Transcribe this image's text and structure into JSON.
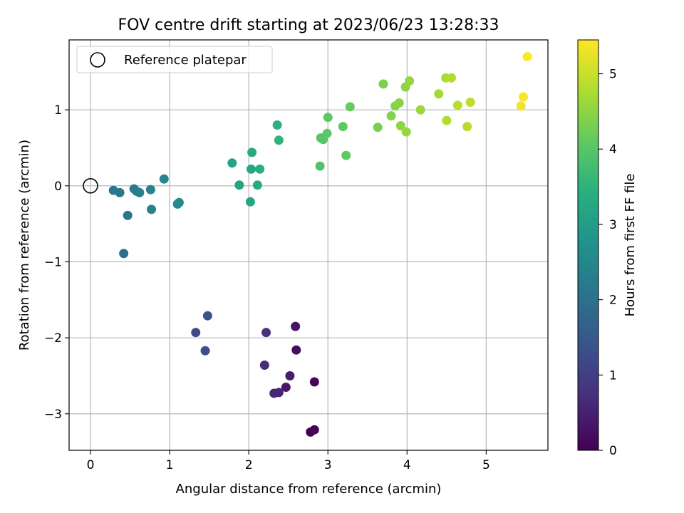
{
  "chart_data": {
    "type": "scatter",
    "title": "FOV centre drift starting at 2023/06/23 13:28:33",
    "xlabel": "Angular distance from reference (arcmin)",
    "ylabel": "Rotation from reference (arcmin)",
    "xlim": [
      -0.27,
      5.78
    ],
    "ylim": [
      -3.48,
      1.92
    ],
    "xticks": [
      0,
      1,
      2,
      3,
      4,
      5
    ],
    "yticks": [
      -3,
      -2,
      -1,
      0,
      1
    ],
    "xtick_labels": [
      "0",
      "1",
      "2",
      "3",
      "4",
      "5"
    ],
    "ytick_labels": [
      "−3",
      "−2",
      "−1",
      "0",
      "1"
    ],
    "grid": true,
    "legend": {
      "placement": "top-left",
      "entries": [
        {
          "label": "Reference platepar",
          "marker": "open-circle"
        }
      ]
    },
    "reference_point": {
      "x": 0,
      "y": 0
    },
    "colorbar": {
      "label": "Hours from first FF file",
      "colormap": "viridis",
      "range": [
        0,
        5.45
      ],
      "ticks": [
        0,
        1,
        2,
        3,
        4,
        5
      ],
      "tick_labels": [
        "0",
        "1",
        "2",
        "3",
        "4",
        "5"
      ]
    },
    "points": [
      {
        "x": 2.78,
        "y": -3.24,
        "c": 0.0
      },
      {
        "x": 2.83,
        "y": -3.21,
        "c": 0.05
      },
      {
        "x": 2.83,
        "y": -2.58,
        "c": 0.1
      },
      {
        "x": 2.6,
        "y": -2.16,
        "c": 0.2
      },
      {
        "x": 2.59,
        "y": -1.85,
        "c": 0.3
      },
      {
        "x": 2.47,
        "y": -2.65,
        "c": 0.4
      },
      {
        "x": 2.52,
        "y": -2.5,
        "c": 0.45
      },
      {
        "x": 2.38,
        "y": -2.72,
        "c": 0.55
      },
      {
        "x": 2.32,
        "y": -2.73,
        "c": 0.6
      },
      {
        "x": 2.2,
        "y": -2.36,
        "c": 0.7
      },
      {
        "x": 2.22,
        "y": -1.93,
        "c": 0.75
      },
      {
        "x": 1.33,
        "y": -1.93,
        "c": 1.2
      },
      {
        "x": 1.45,
        "y": -2.17,
        "c": 1.3
      },
      {
        "x": 1.48,
        "y": -1.71,
        "c": 1.4
      },
      {
        "x": 0.42,
        "y": -0.89,
        "c": 2.0
      },
      {
        "x": 0.47,
        "y": -0.39,
        "c": 2.1
      },
      {
        "x": 0.29,
        "y": -0.06,
        "c": 2.15
      },
      {
        "x": 0.37,
        "y": -0.09,
        "c": 2.2
      },
      {
        "x": 0.55,
        "y": -0.04,
        "c": 2.25
      },
      {
        "x": 0.58,
        "y": -0.07,
        "c": 2.3
      },
      {
        "x": 0.62,
        "y": -0.09,
        "c": 2.35
      },
      {
        "x": 0.76,
        "y": -0.05,
        "c": 2.4
      },
      {
        "x": 0.77,
        "y": -0.31,
        "c": 2.45
      },
      {
        "x": 0.93,
        "y": 0.09,
        "c": 2.5
      },
      {
        "x": 1.1,
        "y": -0.24,
        "c": 2.55
      },
      {
        "x": 1.12,
        "y": -0.22,
        "c": 2.6
      },
      {
        "x": 1.79,
        "y": 0.3,
        "c": 3.1
      },
      {
        "x": 1.88,
        "y": 0.01,
        "c": 3.15
      },
      {
        "x": 2.02,
        "y": -0.21,
        "c": 3.2
      },
      {
        "x": 2.03,
        "y": 0.22,
        "c": 3.25
      },
      {
        "x": 2.04,
        "y": 0.44,
        "c": 3.3
      },
      {
        "x": 2.11,
        "y": 0.01,
        "c": 3.35
      },
      {
        "x": 2.14,
        "y": 0.22,
        "c": 3.4
      },
      {
        "x": 2.36,
        "y": 0.8,
        "c": 3.45
      },
      {
        "x": 2.38,
        "y": 0.6,
        "c": 3.5
      },
      {
        "x": 2.9,
        "y": 0.26,
        "c": 3.9
      },
      {
        "x": 2.91,
        "y": 0.63,
        "c": 3.95
      },
      {
        "x": 2.94,
        "y": 0.61,
        "c": 4.0
      },
      {
        "x": 2.99,
        "y": 0.69,
        "c": 4.05
      },
      {
        "x": 3.0,
        "y": 0.9,
        "c": 4.05
      },
      {
        "x": 3.19,
        "y": 0.78,
        "c": 4.1
      },
      {
        "x": 3.23,
        "y": 0.4,
        "c": 4.1
      },
      {
        "x": 3.28,
        "y": 1.04,
        "c": 4.15
      },
      {
        "x": 3.63,
        "y": 0.77,
        "c": 4.3
      },
      {
        "x": 3.7,
        "y": 1.34,
        "c": 4.35
      },
      {
        "x": 3.8,
        "y": 0.92,
        "c": 4.4
      },
      {
        "x": 3.85,
        "y": 1.05,
        "c": 4.45
      },
      {
        "x": 3.9,
        "y": 1.09,
        "c": 4.45
      },
      {
        "x": 3.92,
        "y": 0.79,
        "c": 4.5
      },
      {
        "x": 3.98,
        "y": 1.3,
        "c": 4.5
      },
      {
        "x": 3.99,
        "y": 0.71,
        "c": 4.55
      },
      {
        "x": 4.03,
        "y": 1.38,
        "c": 4.55
      },
      {
        "x": 4.17,
        "y": 1.0,
        "c": 4.6
      },
      {
        "x": 4.4,
        "y": 1.21,
        "c": 4.7
      },
      {
        "x": 4.49,
        "y": 1.42,
        "c": 4.75
      },
      {
        "x": 4.5,
        "y": 0.86,
        "c": 4.8
      },
      {
        "x": 4.56,
        "y": 1.42,
        "c": 4.8
      },
      {
        "x": 4.64,
        "y": 1.06,
        "c": 4.85
      },
      {
        "x": 4.76,
        "y": 0.78,
        "c": 4.85
      },
      {
        "x": 4.8,
        "y": 1.1,
        "c": 4.9
      },
      {
        "x": 5.44,
        "y": 1.05,
        "c": 5.35
      },
      {
        "x": 5.47,
        "y": 1.17,
        "c": 5.4
      },
      {
        "x": 5.52,
        "y": 1.7,
        "c": 5.45
      }
    ]
  }
}
